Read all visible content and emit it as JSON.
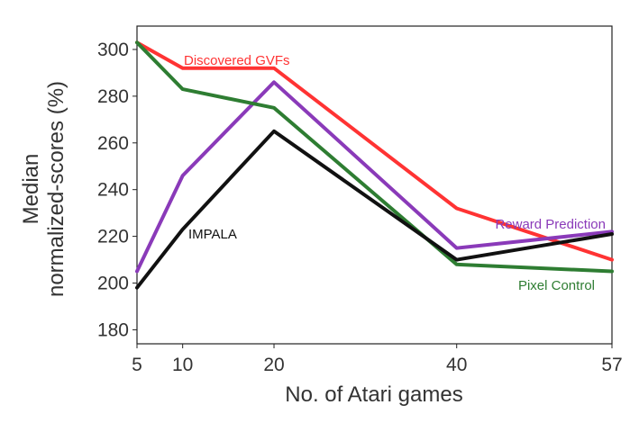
{
  "chart_data": {
    "type": "line",
    "xlabel": "No. of Atari games",
    "ylabel_lines": [
      "Median",
      "normalized-scores (%)"
    ],
    "x_ticks": [
      5,
      10,
      20,
      40,
      57
    ],
    "y_ticks": [
      180,
      200,
      220,
      240,
      260,
      280,
      300
    ],
    "xlim": [
      5,
      57
    ],
    "ylim": [
      174,
      310
    ],
    "grid": false,
    "legend": "inline labels",
    "series": [
      {
        "name": "Discovered GVFs",
        "color": "#ff3333",
        "x": [
          5,
          10,
          20,
          40,
          57
        ],
        "y": [
          303,
          292,
          292,
          232,
          210
        ]
      },
      {
        "name": "Reward Prediction",
        "color": "#8a3ab9",
        "x": [
          5,
          10,
          20,
          40,
          57
        ],
        "y": [
          205,
          246,
          286,
          215,
          222
        ]
      },
      {
        "name": "Pixel Control",
        "color": "#2e7d32",
        "x": [
          5,
          10,
          20,
          40,
          57
        ],
        "y": [
          303,
          283,
          275,
          208,
          205
        ]
      },
      {
        "name": "IMPALA",
        "color": "#111111",
        "x": [
          5,
          10,
          20,
          40,
          57
        ],
        "y": [
          198,
          223,
          265,
          210,
          221
        ]
      }
    ]
  }
}
